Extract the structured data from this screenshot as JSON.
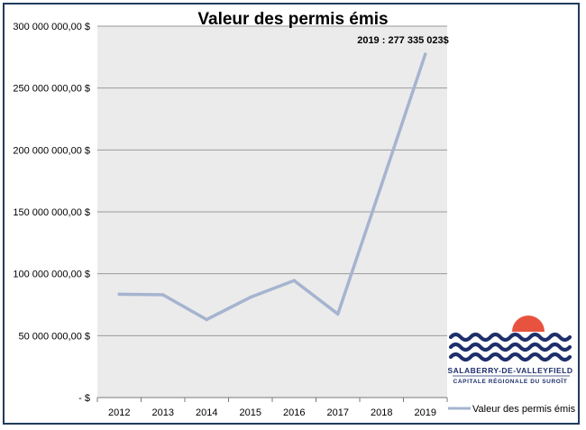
{
  "chart_data": {
    "type": "line",
    "title": "Valeur des permis émis",
    "xlabel": "",
    "ylabel": "",
    "categories": [
      "2012",
      "2013",
      "2014",
      "2015",
      "2016",
      "2017",
      "2018",
      "2019"
    ],
    "series": [
      {
        "name": "Valeur des permis émis",
        "values": [
          83500000,
          83000000,
          63000000,
          81000000,
          94500000,
          67500000,
          172000000,
          277335023
        ],
        "color": "#a5b4cf"
      }
    ],
    "ylim": [
      0,
      300000000
    ],
    "yticks": [
      {
        "value": 0,
        "label": "-   $"
      },
      {
        "value": 50000000,
        "label": "50 000 000,00  $"
      },
      {
        "value": 100000000,
        "label": "100 000 000,00  $"
      },
      {
        "value": 150000000,
        "label": "150 000 000,00  $"
      },
      {
        "value": 200000000,
        "label": "200 000 000,00  $"
      },
      {
        "value": 250000000,
        "label": "250 000 000,00  $"
      },
      {
        "value": 300000000,
        "label": "300 000 000,00  $"
      }
    ],
    "grid": true,
    "legend": "right",
    "annotation": {
      "category": "2019",
      "text": "2019 : 277 335 023$"
    }
  },
  "colors": {
    "plot_background": "#ebebeb",
    "gridline": "#9a9a9a",
    "frame": "#1f3b5c",
    "logo_waves": "#1e2f6b",
    "logo_sun": "#e8533f"
  },
  "logo": {
    "name": "SALABERRY-DE-VALLEYFIELD",
    "tagline": "CAPITALE RÉGIONALE DU SUROÎT"
  }
}
